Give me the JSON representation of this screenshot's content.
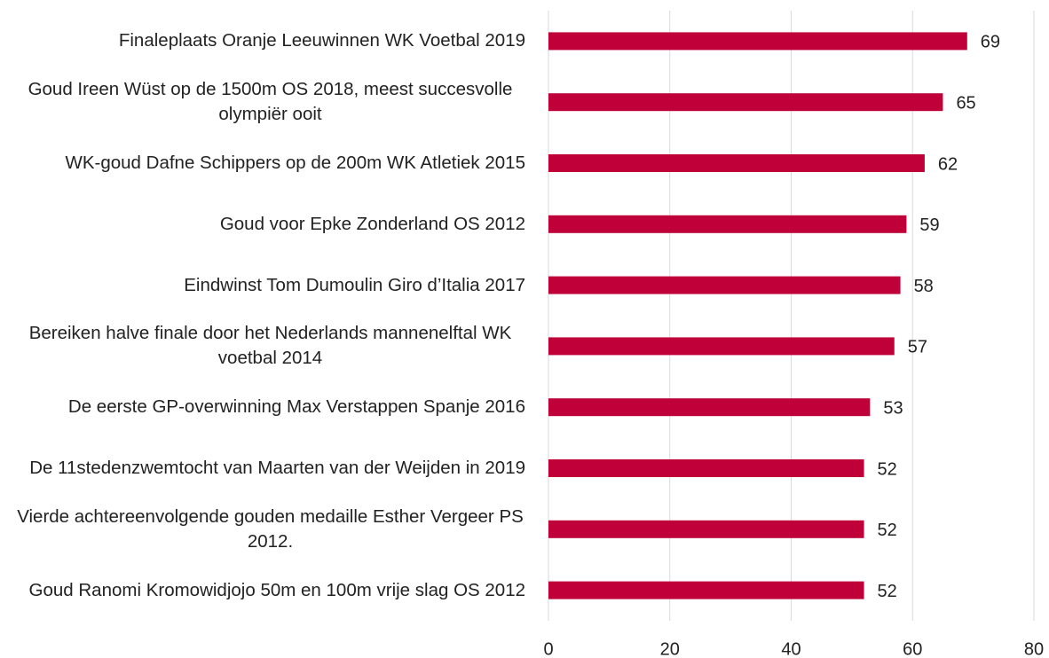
{
  "chart_data": {
    "type": "bar",
    "orientation": "horizontal",
    "categories": [
      "Finaleplaats Oranje Leeuwinnen WK Voetbal 2019",
      "Goud Ireen Wüst op de 1500m OS 2018, meest succesvolle olympiër ooit",
      "WK-goud Dafne Schippers op de 200m WK Atletiek 2015",
      "Goud voor Epke Zonderland OS 2012",
      "Eindwinst Tom Dumoulin Giro d’Italia 2017",
      "Bereiken halve finale door het Nederlands mannenelftal WK voetbal 2014",
      "De eerste GP-overwinning Max Verstappen Spanje 2016",
      "De 11stedenzwemtocht van Maarten van der Weijden in 2019",
      "Vierde achtereenvolgende gouden medaille Esther Vergeer PS 2012.",
      "Goud Ranomi Kromowidjojo 50m en 100m vrije slag OS 2012"
    ],
    "values": [
      69,
      65,
      62,
      59,
      58,
      57,
      53,
      52,
      52,
      52
    ],
    "color": "#c00039",
    "xlim": [
      0,
      80
    ],
    "xticks": [
      0,
      20,
      40,
      60,
      80
    ],
    "grid": true
  }
}
